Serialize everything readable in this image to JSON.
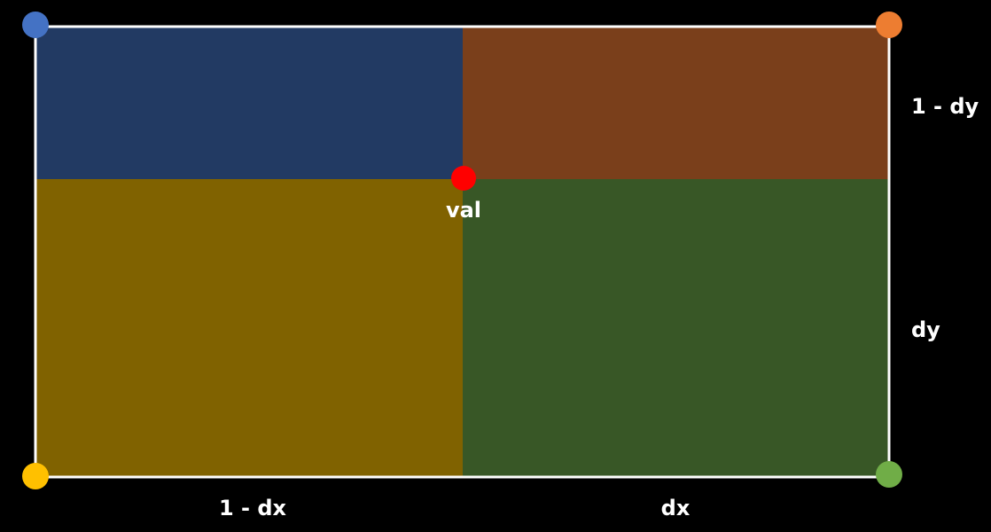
{
  "labels": {
    "point": "val",
    "top_right": "1 - dy",
    "bottom_right": "dy",
    "bottom_left": "1 - dx",
    "bottom_dx": "dx"
  },
  "colors": {
    "background": "#000000",
    "border": "#ffffff",
    "region_top_left": "#223a63",
    "region_top_right": "#7a3f1b",
    "region_bottom_left": "#806200",
    "region_bottom_right": "#385726",
    "corner_top_left": "#4472c4",
    "corner_top_right": "#ed7d31",
    "corner_bottom_left": "#ffc000",
    "corner_bottom_right": "#70ad47",
    "point": "#ff0000"
  }
}
